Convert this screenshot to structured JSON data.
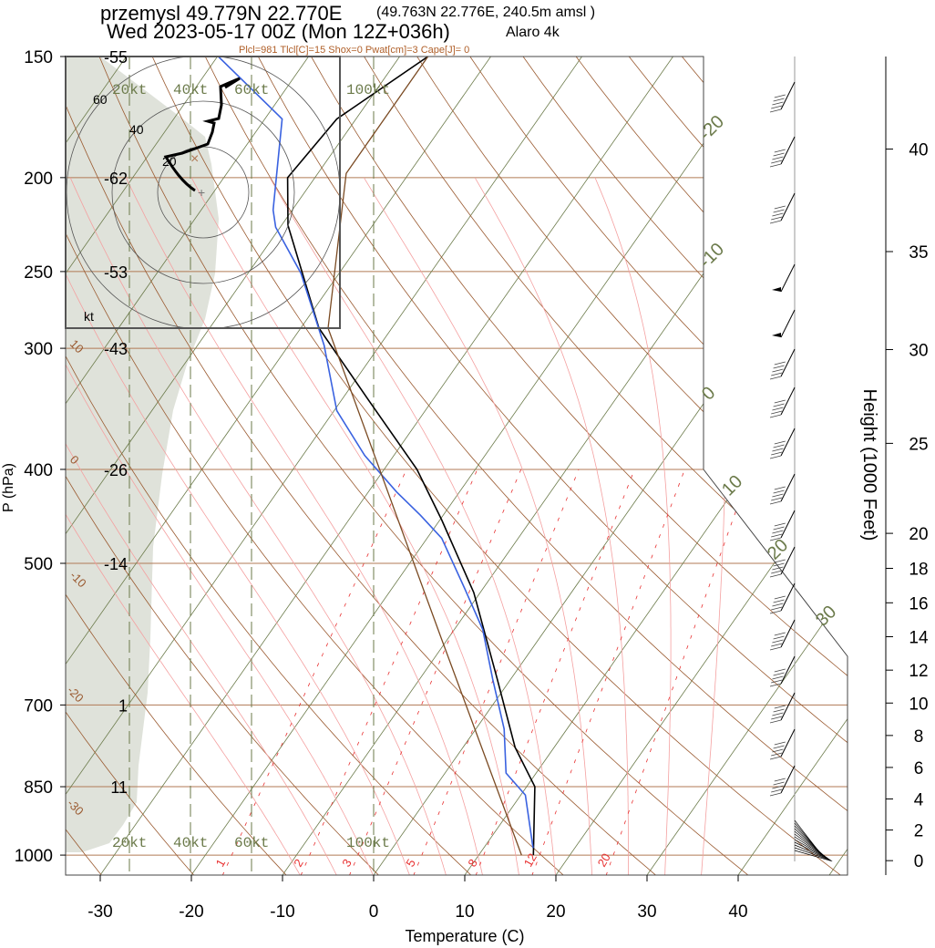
{
  "header": {
    "title": "przemysl 49.779N 22.770E",
    "location_detail": "(49.763N 22.776E, 240.5m amsl )",
    "subtitle": "Wed 2023-05-17 00Z (Mon 12Z+036h)",
    "model": "Alaro 4k",
    "indices": "Plcl=981 Tlcl[C]=15 Shox=0 Pwat[cm]=3 Cape[J]= 0"
  },
  "colors": {
    "temperature": "#000000",
    "dewpoint": "#3a62e0",
    "parcel": "#7a4a22",
    "isotherm": "#6b7a4a",
    "isobar": "#b07a55",
    "dry_adiabat": "#9a5a30",
    "moist_adiabat": "#f4a0a0",
    "mixing_ratio": "#e83030",
    "shading": "#dfe2da"
  },
  "chart_data": {
    "type": "line",
    "subtype": "skew-T log-p",
    "xlabel": "Temperature (C)",
    "ylabel": "P (hPa)",
    "y2label": "Height (1000 Feet)",
    "xticks": [
      -30,
      -20,
      -10,
      0,
      10,
      20,
      30,
      40
    ],
    "yticks": [
      150,
      200,
      250,
      300,
      400,
      500,
      700,
      850,
      1000
    ],
    "y2ticks": [
      0,
      2,
      4,
      6,
      8,
      10,
      12,
      14,
      16,
      18,
      20,
      25,
      30,
      35,
      40
    ],
    "xlim_at_bottom": [
      -34,
      52
    ],
    "ylim": [
      1050,
      150
    ],
    "isotherm_labels": [
      "-20",
      "-10",
      "0",
      "10",
      "20",
      "30"
    ],
    "dry_adiabat_labels": [
      "10",
      "0",
      "-10",
      "-20",
      "-30"
    ],
    "mixing_ratio_labels": [
      1,
      2,
      3,
      5,
      8,
      12,
      20
    ],
    "level_temperature_labels": [
      {
        "p": 150,
        "label": "-55"
      },
      {
        "p": 200,
        "label": "-62"
      },
      {
        "p": 250,
        "label": "-53"
      },
      {
        "p": 300,
        "label": "-43"
      },
      {
        "p": 400,
        "label": "-26"
      },
      {
        "p": 500,
        "label": "-14"
      },
      {
        "p": 700,
        "label": "1"
      },
      {
        "p": 850,
        "label": "11"
      }
    ],
    "series": [
      {
        "name": "temperature",
        "p": [
          1000,
          850,
          774,
          658,
          536,
          451,
          400,
          340,
          286,
          224,
          200,
          174,
          150
        ],
        "t": [
          16.0,
          10.9,
          5.7,
          -1.5,
          -10.7,
          -19.8,
          -26.4,
          -36.9,
          -48.0,
          -59.3,
          -63.0,
          -62.1,
          -56.9
        ]
      },
      {
        "name": "dewpoint",
        "p": [
          983,
          867,
          823,
          741,
          658,
          585,
          530,
          471,
          446,
          422,
          387,
          348,
          298,
          251,
          225,
          216,
          174,
          150
        ],
        "t": [
          15.4,
          10.5,
          6.7,
          3.1,
          -2.0,
          -6.9,
          -12.1,
          -18.4,
          -22.5,
          -26.9,
          -33.2,
          -39.7,
          -46.1,
          -54.2,
          -60.5,
          -62.1,
          -68.1,
          -79.9
        ]
      },
      {
        "name": "parcel",
        "p": [
          1000,
          597,
          286,
          198,
          150
        ],
        "t": [
          14.7,
          -10.8,
          -47.0,
          -56.9,
          -56.9
        ]
      }
    ],
    "hodograph": {
      "unit_label": "kt",
      "ring_labels": [
        "20",
        "40",
        "60"
      ],
      "speed_labels": [
        "20kt",
        "40kt",
        "60kt",
        "100kt"
      ]
    }
  }
}
